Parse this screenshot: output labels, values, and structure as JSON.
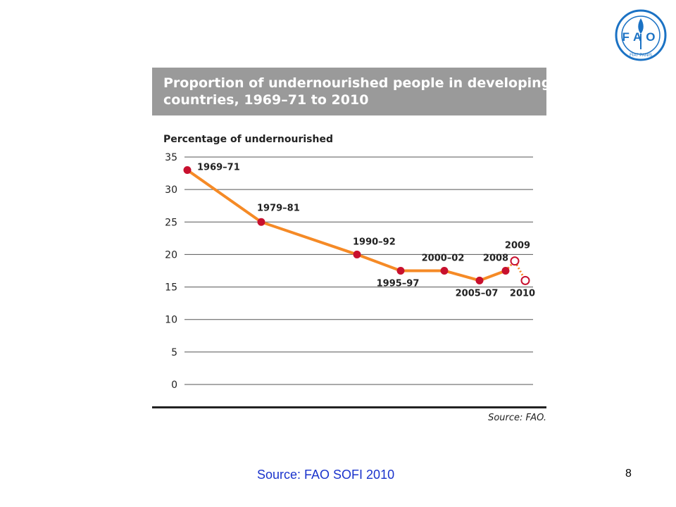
{
  "logo": {
    "text_main": "FAO",
    "text_motto": "FIAT PANIS",
    "color": "#1b72c4"
  },
  "chart_data": {
    "type": "line",
    "title_lines": [
      "Proportion of undernourished people in developing",
      "countries, 1969–71 to 2010"
    ],
    "ylabel": "Percentage of undernourished",
    "ylim": [
      0,
      35
    ],
    "yticks": [
      "0",
      "5",
      "10",
      "15",
      "20",
      "25",
      "30",
      "35"
    ],
    "grid": true,
    "series": [
      {
        "points": [
          {
            "label": "1969–71",
            "value": 33
          },
          {
            "label": "1979–81",
            "value": 25
          },
          {
            "label": "1990–92",
            "value": 20
          },
          {
            "label": "1995–97",
            "value": 17.5
          },
          {
            "label": "2000–02",
            "value": 17.5
          },
          {
            "label": "2005–07",
            "value": 16
          },
          {
            "label": "2008",
            "value": 17.5
          },
          {
            "label": "2009",
            "value": 19
          },
          {
            "label": "2010",
            "value": 16
          }
        ],
        "solid_point_count": 7,
        "line_color": "#f58a26",
        "marker_color": "#c8102e"
      }
    ],
    "source": "Source: FAO."
  },
  "footer": {
    "source": "Source: FAO SOFI 2010",
    "page_number": "8"
  }
}
